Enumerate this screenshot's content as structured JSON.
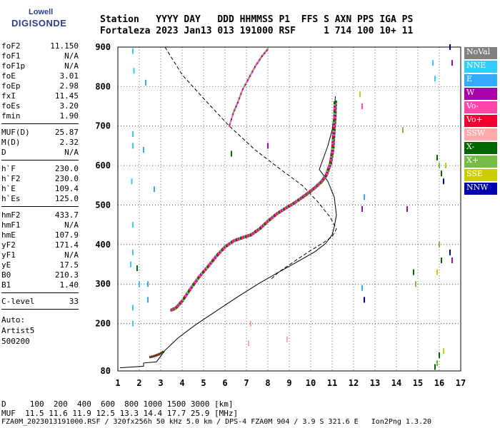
{
  "logo": {
    "line1": "Lowell",
    "line2": "DIGISONDE"
  },
  "header": {
    "labels_line": "Station   YYYY DAY   DDD HHMMSS P1  FFS S AXN PPS IGA PS",
    "values_line": "Fortaleza 2023 Jan13 013 191000 RSF     1 714 100 10+ 11"
  },
  "params": [
    {
      "key": "foF2",
      "value": "11.150"
    },
    {
      "key": "foF1",
      "value": "N/A"
    },
    {
      "key": "foF1p",
      "value": "N/A"
    },
    {
      "key": "foE",
      "value": "3.01"
    },
    {
      "key": "foEp",
      "value": "2.98"
    },
    {
      "key": "fxI",
      "value": "11.45"
    },
    {
      "key": "foEs",
      "value": "3.20"
    },
    {
      "key": "fmin",
      "value": "1.90"
    },
    {
      "key": "MUF(D)",
      "value": "25.87"
    },
    {
      "key": "M(D)",
      "value": "2.32"
    },
    {
      "key": "D",
      "value": "N/A"
    },
    {
      "key": "h`F",
      "value": "230.0"
    },
    {
      "key": "h`F2",
      "value": "230.0"
    },
    {
      "key": "h`E",
      "value": "109.4"
    },
    {
      "key": "h`Es",
      "value": "125.0"
    },
    {
      "key": "hmF2",
      "value": "433.7"
    },
    {
      "key": "hmF1",
      "value": "N/A"
    },
    {
      "key": "hmE",
      "value": "107.9"
    },
    {
      "key": "yF2",
      "value": "171.4"
    },
    {
      "key": "yF1",
      "value": "N/A"
    },
    {
      "key": "yE",
      "value": "17.5"
    },
    {
      "key": "B0",
      "value": "210.3"
    },
    {
      "key": "B1",
      "value": "1.40"
    },
    {
      "key": "C-level",
      "value": "33"
    }
  ],
  "autoscaling": {
    "line1": "Auto:",
    "line2": "Artist5",
    "line3": "500200"
  },
  "legend": [
    {
      "label": "NoVal",
      "color": "#808080"
    },
    {
      "label": "NNE",
      "color": "#33ccff"
    },
    {
      "label": "E",
      "color": "#33aaff"
    },
    {
      "label": "W",
      "color": "#aa00aa"
    },
    {
      "label": "Vo-",
      "color": "#ff44aa"
    },
    {
      "label": "Vo+",
      "color": "#ee0033"
    },
    {
      "label": "SSW",
      "color": "#ffaaaa"
    },
    {
      "label": "X-",
      "color": "#006600"
    },
    {
      "label": "X+",
      "color": "#77bb44"
    },
    {
      "label": "SSE",
      "color": "#cccc00"
    },
    {
      "label": "NNW",
      "color": "#0000aa"
    }
  ],
  "footer": {
    "line1": "D     100  200  400  600  800 1000 1500 3000 [km]",
    "line2": "MUF  11.5 11.6 11.9 12.5 13.3 14.4 17.7 25.9 [MHz]",
    "line3": "FZA0M_2023013191000.RSF / 320fx256h 50 kHz 5.0 km / DPS-4 FZA0M 904 / 3.9 S 321.6 E   Ion2Png 1.3.20"
  },
  "chart_data": {
    "type": "scatter",
    "xlim": [
      1,
      17
    ],
    "ylim": [
      80,
      900
    ],
    "x_ticks": [
      1,
      2,
      3,
      4,
      5,
      6,
      7,
      8,
      9,
      10,
      11,
      12,
      13,
      14,
      15,
      16,
      17
    ],
    "y_ticks": [
      80,
      200,
      300,
      400,
      500,
      600,
      700,
      800,
      900
    ],
    "grid": true,
    "profile_solid": [
      [
        1.1,
        88
      ],
      [
        2.2,
        92
      ],
      [
        2.2,
        100
      ],
      [
        2.8,
        103
      ],
      [
        2.9,
        110
      ],
      [
        3.2,
        132
      ],
      [
        3.8,
        163
      ],
      [
        4.6,
        196
      ],
      [
        5.6,
        232
      ],
      [
        6.6,
        268
      ],
      [
        7.6,
        302
      ],
      [
        8.6,
        333
      ],
      [
        9.4,
        357
      ],
      [
        10.2,
        382
      ],
      [
        10.7,
        403
      ],
      [
        11.0,
        425
      ],
      [
        11.1,
        445
      ],
      [
        11.2,
        475
      ],
      [
        11.1,
        520
      ],
      [
        10.8,
        560
      ],
      [
        10.4,
        590
      ],
      [
        10.6,
        620
      ],
      [
        10.8,
        650
      ],
      [
        11.0,
        690
      ],
      [
        11.1,
        735
      ],
      [
        11.15,
        775
      ]
    ],
    "profile_dashed": [
      [
        3.2,
        900
      ],
      [
        4.0,
        830
      ],
      [
        5.0,
        770
      ],
      [
        6.2,
        700
      ],
      [
        7.4,
        640
      ],
      [
        8.6,
        590
      ],
      [
        9.6,
        550
      ],
      [
        10.3,
        510
      ],
      [
        10.9,
        470
      ],
      [
        11.2,
        440
      ],
      [
        11.0,
        420
      ],
      [
        10.6,
        405
      ],
      [
        10.0,
        385
      ],
      [
        9.3,
        360
      ],
      [
        8.5,
        330
      ],
      [
        8.1,
        310
      ]
    ],
    "echo_o_trace": [
      [
        3.5,
        235
      ],
      [
        3.7,
        240
      ],
      [
        4.0,
        258
      ],
      [
        4.4,
        290
      ],
      [
        4.8,
        320
      ],
      [
        5.2,
        345
      ],
      [
        5.6,
        372
      ],
      [
        6.0,
        395
      ],
      [
        6.4,
        410
      ],
      [
        6.8,
        418
      ],
      [
        7.2,
        425
      ],
      [
        7.6,
        440
      ],
      [
        8.0,
        460
      ],
      [
        8.4,
        478
      ],
      [
        8.8,
        492
      ],
      [
        9.2,
        505
      ],
      [
        9.6,
        520
      ],
      [
        9.9,
        532
      ],
      [
        10.2,
        545
      ],
      [
        10.5,
        560
      ],
      [
        10.7,
        575
      ],
      [
        10.9,
        605
      ],
      [
        11.0,
        640
      ],
      [
        11.05,
        680
      ],
      [
        11.1,
        720
      ],
      [
        11.12,
        760
      ]
    ],
    "echo_x_trace": [
      [
        6.2,
        700
      ],
      [
        6.4,
        735
      ],
      [
        6.6,
        760
      ],
      [
        6.8,
        790
      ],
      [
        7.1,
        820
      ],
      [
        7.4,
        850
      ],
      [
        7.7,
        875
      ],
      [
        8.0,
        895
      ]
    ],
    "echo_low": [
      [
        2.5,
        115
      ],
      [
        2.7,
        118
      ],
      [
        2.9,
        122
      ],
      [
        3.1,
        128
      ]
    ]
  }
}
